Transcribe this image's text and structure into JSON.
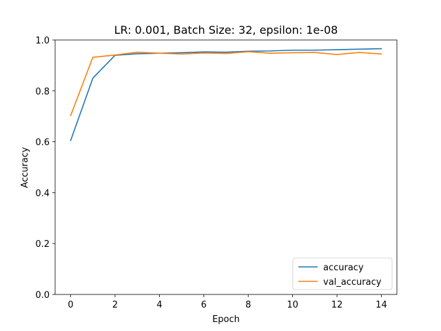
{
  "chart_data": {
    "type": "line",
    "title": "LR: 0.001, Batch Size: 32, epsilon: 1e-08",
    "xlabel": "Epoch",
    "ylabel": "Accuracy",
    "xlim": [
      -0.7,
      14.7
    ],
    "ylim": [
      0.0,
      1.0
    ],
    "xticks": [
      0,
      2,
      4,
      6,
      8,
      10,
      12,
      14
    ],
    "yticks": [
      0.0,
      0.2,
      0.4,
      0.6,
      0.8,
      1.0
    ],
    "ytick_labels": [
      "0.0",
      "0.2",
      "0.4",
      "0.6",
      "0.8",
      "1.0"
    ],
    "grid": false,
    "legend_position": "lower-right",
    "x": [
      0,
      1,
      2,
      3,
      4,
      5,
      6,
      7,
      8,
      9,
      10,
      11,
      12,
      13,
      14
    ],
    "series": [
      {
        "name": "accuracy",
        "color": "#1f77b4",
        "values": [
          0.605,
          0.85,
          0.94,
          0.946,
          0.948,
          0.95,
          0.953,
          0.952,
          0.956,
          0.957,
          0.96,
          0.96,
          0.962,
          0.964,
          0.966
        ]
      },
      {
        "name": "val_accuracy",
        "color": "#ff7f0e",
        "values": [
          0.703,
          0.932,
          0.941,
          0.952,
          0.948,
          0.945,
          0.949,
          0.947,
          0.954,
          0.948,
          0.95,
          0.951,
          0.943,
          0.951,
          0.945
        ]
      }
    ]
  }
}
